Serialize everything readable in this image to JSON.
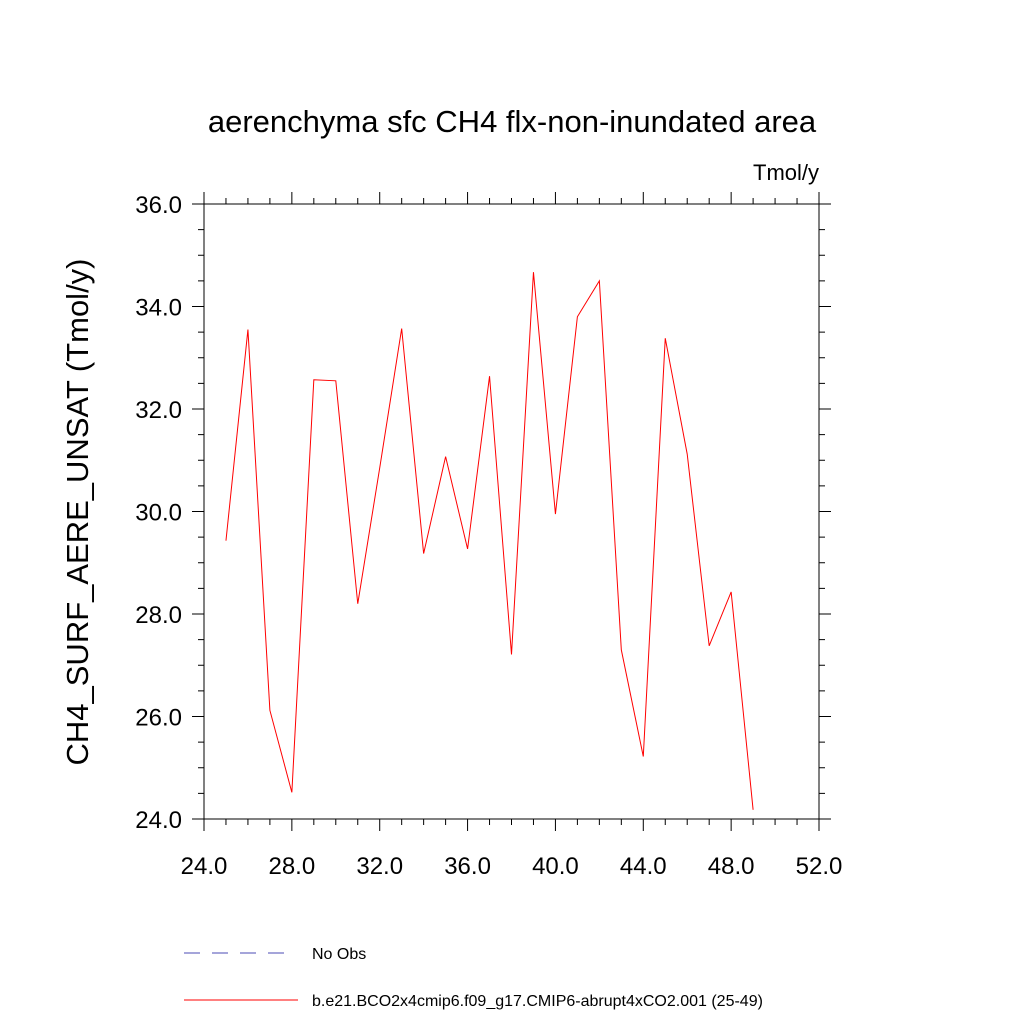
{
  "chart_data": {
    "type": "line",
    "title": "aerenchyma sfc CH4 flx-non-inundated area",
    "units": "Tmol/y",
    "ylabel": "CH4_SURF_AERE_UNSAT  (Tmol/y)",
    "xlabel": "",
    "xlim": [
      24.0,
      52.0
    ],
    "ylim": [
      24.0,
      36.0
    ],
    "x_ticks": [
      "24.0",
      "28.0",
      "32.0",
      "36.0",
      "40.0",
      "44.0",
      "48.0",
      "52.0"
    ],
    "y_ticks": [
      "24.0",
      "26.0",
      "28.0",
      "30.0",
      "32.0",
      "34.0",
      "36.0"
    ],
    "grid": false,
    "legend_position": "bottom",
    "series": [
      {
        "name": "b.e21.BCO2x4cmip6.f09_g17.CMIP6-abrupt4xCO2.001 (25-49)",
        "color": "#ff0000",
        "x": [
          25,
          26,
          27,
          28,
          29,
          30,
          31,
          32,
          33,
          34,
          35,
          36,
          37,
          38,
          39,
          40,
          41,
          42,
          43,
          44,
          45,
          46,
          47,
          48,
          49
        ],
        "values": [
          29.43,
          33.55,
          26.12,
          24.52,
          32.57,
          32.55,
          28.2,
          30.85,
          33.57,
          29.18,
          31.07,
          29.27,
          32.64,
          27.21,
          34.67,
          29.95,
          33.8,
          34.5,
          27.3,
          25.22,
          33.38,
          31.12,
          27.38,
          28.43,
          24.18
        ]
      }
    ],
    "legend": [
      {
        "label": "No Obs",
        "color": "#4b4bb4",
        "style": "dashed"
      },
      {
        "label": "b.e21.BCO2x4cmip6.f09_g17.CMIP6-abrupt4xCO2.001 (25-49)",
        "color": "#ff0000",
        "style": "solid"
      }
    ]
  }
}
